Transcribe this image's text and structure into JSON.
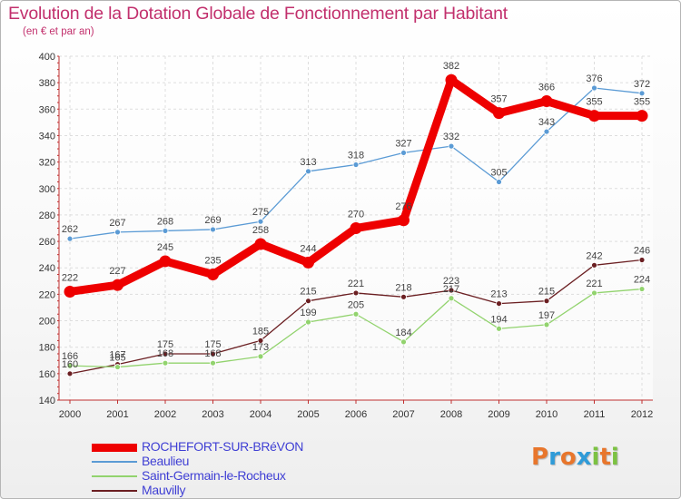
{
  "title": "Evolution de la Dotation Globale de Fonctionnement par Habitant",
  "subtitle": "(en € et par an)",
  "logo": {
    "text": "Proxiti",
    "letter_colors": [
      "#e8762c",
      "#2f9bd8",
      "#e8762c",
      "#2f9bd8",
      "#7cc242",
      "#e8762c",
      "#7cc242"
    ]
  },
  "chart_data": {
    "type": "line",
    "title": "Evolution de la Dotation Globale de Fonctionnement par Habitant",
    "subtitle": "(en € et par an)",
    "x": [
      "2000",
      "2001",
      "2002",
      "2003",
      "2004",
      "2005",
      "2006",
      "2007",
      "2008",
      "2009",
      "2010",
      "2011",
      "2012"
    ],
    "ylim": [
      140,
      400
    ],
    "yticks": [
      140,
      160,
      180,
      200,
      220,
      240,
      260,
      280,
      300,
      320,
      340,
      360,
      380,
      400
    ],
    "grid": true,
    "legend_position": "bottom-left",
    "series": [
      {
        "name": "ROCHEFORT-SUR-BRéVON",
        "color": "#ee0000",
        "values": [
          222,
          227,
          245,
          235,
          258,
          244,
          270,
          276,
          382,
          357,
          366,
          355,
          355
        ]
      },
      {
        "name": "Beaulieu",
        "color": "#5b9bd5",
        "values": [
          262,
          267,
          268,
          269,
          275,
          313,
          318,
          327,
          332,
          305,
          343,
          376,
          372
        ]
      },
      {
        "name": "Saint-Germain-le-Rocheux",
        "color": "#92d36e",
        "values": [
          166,
          165,
          168,
          168,
          173,
          199,
          205,
          184,
          217,
          194,
          197,
          221,
          224
        ]
      },
      {
        "name": "Mauvilly",
        "color": "#6b1f22",
        "values": [
          160,
          167,
          175,
          175,
          185,
          215,
          221,
          218,
          223,
          213,
          215,
          242,
          246
        ]
      }
    ]
  }
}
